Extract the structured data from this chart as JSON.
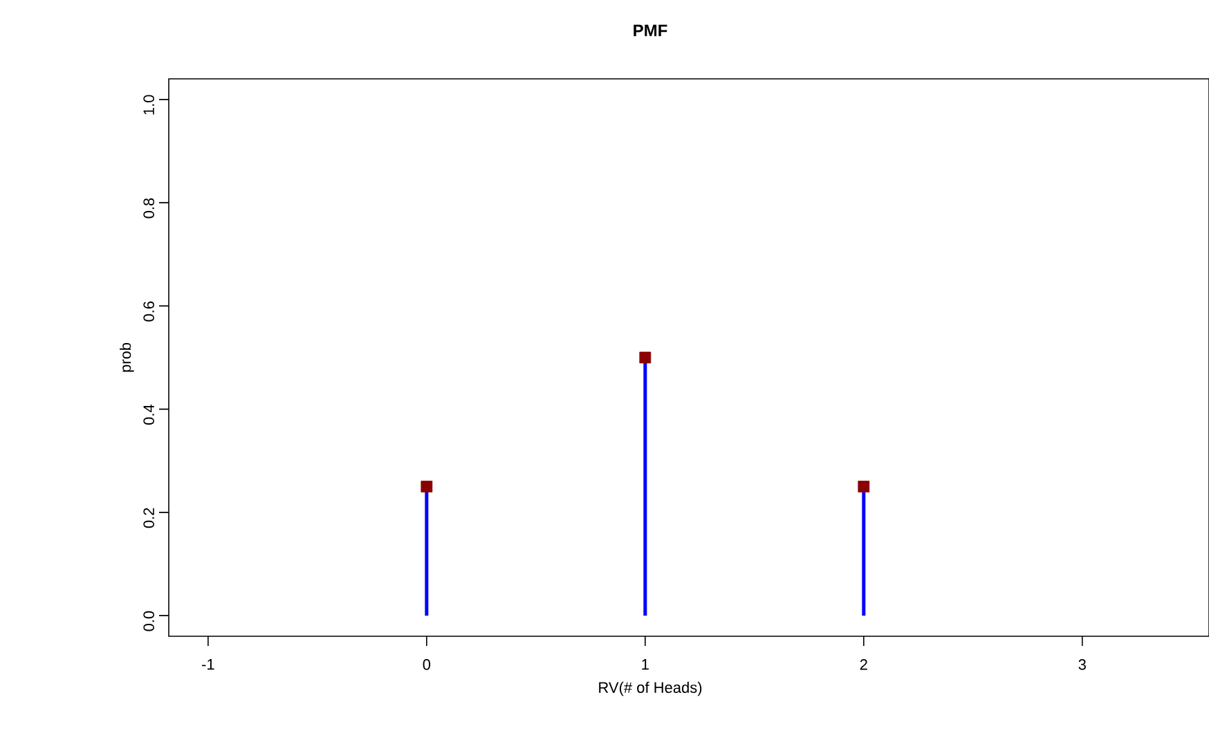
{
  "chart_data": {
    "type": "lollipop",
    "title": "PMF",
    "xlabel": "RV(# of Heads)",
    "ylabel": "prob",
    "xlim": [
      -1.18,
      3.58
    ],
    "ylim": [
      -0.04,
      1.04
    ],
    "xticks": [
      -1,
      0,
      1,
      2,
      3
    ],
    "yticks": [
      {
        "value": 0,
        "label": "0.0"
      },
      {
        "value": 0.2,
        "label": "0.2"
      },
      {
        "value": 0.4,
        "label": "0.4"
      },
      {
        "value": 0.6,
        "label": "0.6"
      },
      {
        "value": 0.8,
        "label": "0.8"
      },
      {
        "value": 1,
        "label": "1.0"
      }
    ],
    "series": [
      {
        "color": "#0000ff",
        "colors": [
          "#8b0000",
          "#8b0000",
          "#8b0000"
        ],
        "x": [
          0,
          1,
          2
        ],
        "values": [
          0.25,
          0.5,
          0.25
        ],
        "marker": "square"
      }
    ]
  }
}
